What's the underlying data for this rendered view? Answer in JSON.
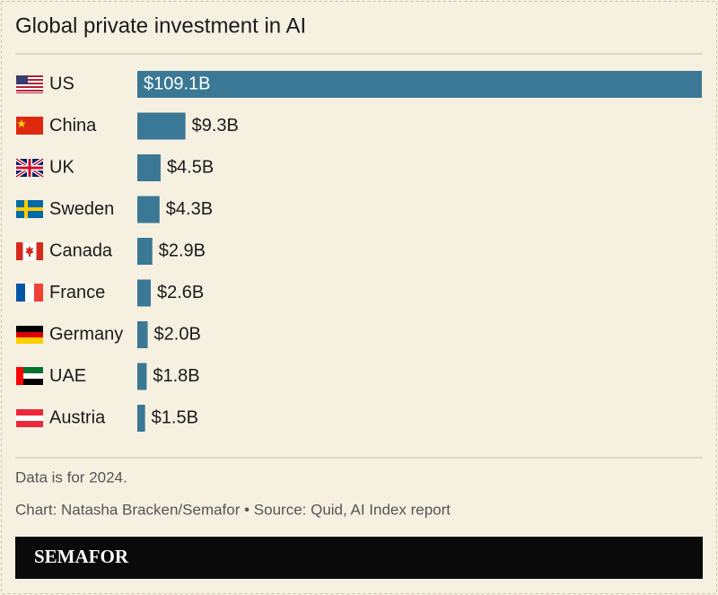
{
  "chart_data": {
    "type": "bar",
    "orientation": "horizontal",
    "title": "Global private investment in AI",
    "categories": [
      "US",
      "China",
      "UK",
      "Sweden",
      "Canada",
      "France",
      "Germany",
      "UAE",
      "Austria"
    ],
    "values": [
      109.1,
      9.3,
      4.5,
      4.3,
      2.9,
      2.6,
      2.0,
      1.8,
      1.5
    ],
    "value_labels": [
      "$109.1B",
      "$9.3B",
      "$4.5B",
      "$4.3B",
      "$2.9B",
      "$2.6B",
      "$2.0B",
      "$1.8B",
      "$1.5B"
    ],
    "color": "#3a7895"
  },
  "footer": {
    "note": "Data is for 2024.",
    "credit": "Chart: Natasha Bracken/Semafor • Source: Quid, AI Index report",
    "brand": "SEMAFOR"
  }
}
